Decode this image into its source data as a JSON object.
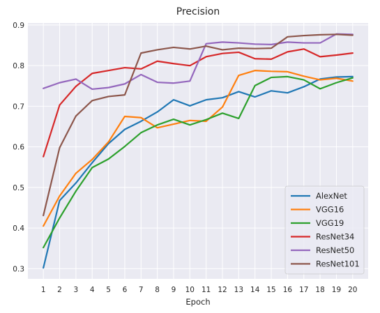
{
  "chart_data": {
    "type": "line",
    "title": "Precision",
    "xlabel": "Epoch",
    "ylabel": "",
    "x": [
      1,
      2,
      3,
      4,
      5,
      6,
      7,
      8,
      9,
      10,
      11,
      12,
      13,
      14,
      15,
      16,
      17,
      18,
      19,
      20
    ],
    "xticks": [
      "1",
      "2",
      "3",
      "4",
      "5",
      "6",
      "7",
      "8",
      "9",
      "10",
      "11",
      "12",
      "13",
      "14",
      "15",
      "16",
      "17",
      "18",
      "19",
      "20"
    ],
    "ylim": [
      0.275,
      0.905
    ],
    "yticks": [
      0.3,
      0.4,
      0.5,
      0.6,
      0.7,
      0.8,
      0.9
    ],
    "ytick_labels": [
      "0.3",
      "0.4",
      "0.5",
      "0.6",
      "0.7",
      "0.8",
      "0.9"
    ],
    "grid": true,
    "legend_position": "lower-right",
    "series": [
      {
        "name": "AlexNet",
        "color": "#1f77b4",
        "values": [
          0.302,
          0.468,
          0.511,
          0.561,
          0.608,
          0.643,
          0.663,
          0.686,
          0.716,
          0.701,
          0.716,
          0.721,
          0.736,
          0.723,
          0.738,
          0.733,
          0.748,
          0.767,
          0.772,
          0.773
        ]
      },
      {
        "name": "VGG16",
        "color": "#ff7f0e",
        "values": [
          0.405,
          0.479,
          0.535,
          0.569,
          0.612,
          0.675,
          0.672,
          0.647,
          0.656,
          0.665,
          0.663,
          0.698,
          0.776,
          0.788,
          0.786,
          0.785,
          0.774,
          0.765,
          0.769,
          0.762
        ]
      },
      {
        "name": "VGG19",
        "color": "#2ca02c",
        "values": [
          0.352,
          0.425,
          0.491,
          0.549,
          0.57,
          0.601,
          0.635,
          0.654,
          0.668,
          0.654,
          0.667,
          0.683,
          0.67,
          0.751,
          0.771,
          0.773,
          0.765,
          0.743,
          0.758,
          0.77
        ]
      },
      {
        "name": "ResNet34",
        "color": "#d62728",
        "values": [
          0.576,
          0.703,
          0.749,
          0.781,
          0.788,
          0.795,
          0.792,
          0.811,
          0.805,
          0.8,
          0.822,
          0.83,
          0.833,
          0.817,
          0.816,
          0.834,
          0.841,
          0.822,
          0.826,
          0.831
        ]
      },
      {
        "name": "ResNet50",
        "color": "#9467bd",
        "values": [
          0.744,
          0.758,
          0.767,
          0.742,
          0.746,
          0.755,
          0.778,
          0.759,
          0.757,
          0.762,
          0.854,
          0.858,
          0.856,
          0.853,
          0.852,
          0.858,
          0.856,
          0.856,
          0.878,
          0.877
        ]
      },
      {
        "name": "ResNet101",
        "color": "#8c564b",
        "values": [
          0.431,
          0.598,
          0.676,
          0.714,
          0.724,
          0.728,
          0.831,
          0.839,
          0.845,
          0.841,
          0.848,
          0.839,
          0.843,
          0.842,
          0.843,
          0.871,
          0.874,
          0.876,
          0.877,
          0.875
        ]
      }
    ]
  }
}
